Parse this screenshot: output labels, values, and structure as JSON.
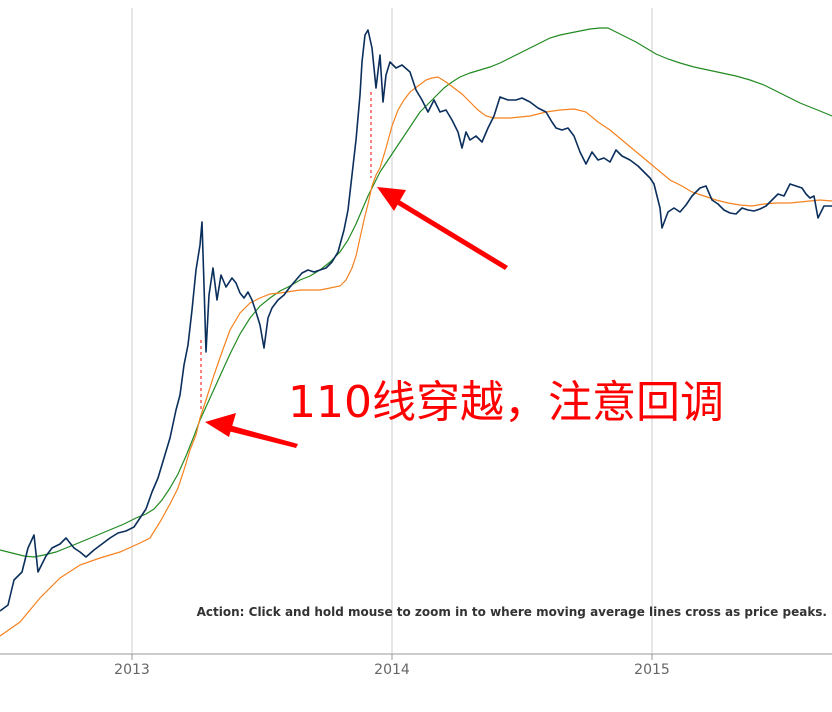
{
  "chart_data": {
    "type": "line",
    "x_axis": {
      "ticks": [
        "2013",
        "2014",
        "2015"
      ],
      "grid": true
    },
    "y_axis": {
      "labels": false
    },
    "colors": {
      "price": "#0b2f5c",
      "ma_short": "#f5821f",
      "ma_long": "#228b22",
      "annotation": "#ff0000",
      "grid": "#cccccc"
    },
    "series": [
      {
        "key": "price",
        "points": [
          [
            0,
            611
          ],
          [
            8,
            605
          ],
          [
            14,
            580
          ],
          [
            22,
            572
          ],
          [
            28,
            548
          ],
          [
            34,
            535
          ],
          [
            38,
            572
          ],
          [
            46,
            556
          ],
          [
            52,
            548
          ],
          [
            60,
            544
          ],
          [
            66,
            538
          ],
          [
            74,
            548
          ],
          [
            80,
            552
          ],
          [
            86,
            557
          ],
          [
            94,
            550
          ],
          [
            102,
            544
          ],
          [
            110,
            538
          ],
          [
            118,
            533
          ],
          [
            126,
            531
          ],
          [
            134,
            527
          ],
          [
            140,
            518
          ],
          [
            146,
            509
          ],
          [
            152,
            492
          ],
          [
            158,
            478
          ],
          [
            164,
            458
          ],
          [
            170,
            438
          ],
          [
            176,
            410
          ],
          [
            180,
            395
          ],
          [
            184,
            365
          ],
          [
            188,
            345
          ],
          [
            192,
            310
          ],
          [
            196,
            270
          ],
          [
            200,
            245
          ],
          [
            202,
            222
          ],
          [
            204,
            285
          ],
          [
            206,
            352
          ],
          [
            209,
            295
          ],
          [
            213,
            268
          ],
          [
            217,
            300
          ],
          [
            221,
            275
          ],
          [
            226,
            287
          ],
          [
            232,
            278
          ],
          [
            236,
            283
          ],
          [
            240,
            293
          ],
          [
            244,
            298
          ],
          [
            248,
            292
          ],
          [
            252,
            300
          ],
          [
            256,
            312
          ],
          [
            260,
            325
          ],
          [
            264,
            348
          ],
          [
            268,
            318
          ],
          [
            272,
            308
          ],
          [
            278,
            300
          ],
          [
            284,
            295
          ],
          [
            290,
            287
          ],
          [
            296,
            280
          ],
          [
            302,
            273
          ],
          [
            308,
            270
          ],
          [
            314,
            272
          ],
          [
            320,
            270
          ],
          [
            326,
            268
          ],
          [
            332,
            262
          ],
          [
            338,
            252
          ],
          [
            344,
            230
          ],
          [
            348,
            210
          ],
          [
            352,
            175
          ],
          [
            356,
            140
          ],
          [
            360,
            95
          ],
          [
            362,
            62
          ],
          [
            365,
            35
          ],
          [
            368,
            30
          ],
          [
            372,
            48
          ],
          [
            376,
            88
          ],
          [
            380,
            55
          ],
          [
            383,
            102
          ],
          [
            386,
            75
          ],
          [
            390,
            62
          ],
          [
            396,
            68
          ],
          [
            402,
            65
          ],
          [
            410,
            72
          ],
          [
            416,
            90
          ],
          [
            422,
            100
          ],
          [
            428,
            112
          ],
          [
            434,
            100
          ],
          [
            440,
            112
          ],
          [
            446,
            110
          ],
          [
            452,
            120
          ],
          [
            458,
            132
          ],
          [
            462,
            148
          ],
          [
            466,
            132
          ],
          [
            470,
            140
          ],
          [
            476,
            136
          ],
          [
            482,
            142
          ],
          [
            488,
            128
          ],
          [
            494,
            116
          ],
          [
            500,
            97
          ],
          [
            508,
            100
          ],
          [
            516,
            100
          ],
          [
            522,
            98
          ],
          [
            530,
            102
          ],
          [
            538,
            108
          ],
          [
            546,
            112
          ],
          [
            552,
            122
          ],
          [
            556,
            128
          ],
          [
            562,
            130
          ],
          [
            568,
            128
          ],
          [
            574,
            136
          ],
          [
            580,
            152
          ],
          [
            586,
            164
          ],
          [
            592,
            152
          ],
          [
            598,
            160
          ],
          [
            604,
            158
          ],
          [
            610,
            162
          ],
          [
            616,
            150
          ],
          [
            622,
            156
          ],
          [
            630,
            160
          ],
          [
            638,
            166
          ],
          [
            644,
            172
          ],
          [
            650,
            178
          ],
          [
            654,
            184
          ],
          [
            660,
            208
          ],
          [
            662,
            228
          ],
          [
            668,
            212
          ],
          [
            674,
            208
          ],
          [
            680,
            212
          ],
          [
            686,
            205
          ],
          [
            692,
            196
          ],
          [
            700,
            188
          ],
          [
            706,
            186
          ],
          [
            712,
            200
          ],
          [
            718,
            204
          ],
          [
            724,
            210
          ],
          [
            730,
            213
          ],
          [
            736,
            214
          ],
          [
            742,
            208
          ],
          [
            748,
            210
          ],
          [
            754,
            211
          ],
          [
            760,
            209
          ],
          [
            766,
            206
          ],
          [
            772,
            200
          ],
          [
            778,
            194
          ],
          [
            784,
            196
          ],
          [
            790,
            184
          ],
          [
            796,
            186
          ],
          [
            802,
            188
          ],
          [
            806,
            194
          ],
          [
            810,
            198
          ],
          [
            814,
            196
          ],
          [
            818,
            218
          ],
          [
            824,
            206
          ],
          [
            832,
            206
          ]
        ]
      },
      {
        "key": "ma_short",
        "points": [
          [
            0,
            636
          ],
          [
            20,
            622
          ],
          [
            40,
            598
          ],
          [
            60,
            578
          ],
          [
            80,
            565
          ],
          [
            100,
            558
          ],
          [
            120,
            552
          ],
          [
            140,
            543
          ],
          [
            150,
            538
          ],
          [
            160,
            522
          ],
          [
            170,
            504
          ],
          [
            178,
            488
          ],
          [
            184,
            470
          ],
          [
            190,
            450
          ],
          [
            196,
            435
          ],
          [
            200,
            418
          ],
          [
            206,
            400
          ],
          [
            214,
            375
          ],
          [
            222,
            352
          ],
          [
            230,
            330
          ],
          [
            240,
            313
          ],
          [
            250,
            303
          ],
          [
            260,
            298
          ],
          [
            270,
            294
          ],
          [
            280,
            293
          ],
          [
            300,
            290
          ],
          [
            320,
            290
          ],
          [
            330,
            288
          ],
          [
            340,
            286
          ],
          [
            346,
            280
          ],
          [
            352,
            268
          ],
          [
            356,
            256
          ],
          [
            360,
            238
          ],
          [
            364,
            220
          ],
          [
            368,
            204
          ],
          [
            372,
            186
          ],
          [
            376,
            175
          ],
          [
            380,
            168
          ],
          [
            386,
            148
          ],
          [
            392,
            126
          ],
          [
            398,
            110
          ],
          [
            404,
            100
          ],
          [
            410,
            92
          ],
          [
            418,
            86
          ],
          [
            426,
            80
          ],
          [
            432,
            78
          ],
          [
            438,
            77
          ],
          [
            446,
            82
          ],
          [
            454,
            88
          ],
          [
            462,
            94
          ],
          [
            470,
            102
          ],
          [
            478,
            110
          ],
          [
            486,
            116
          ],
          [
            494,
            118
          ],
          [
            510,
            118
          ],
          [
            530,
            116
          ],
          [
            546,
            112
          ],
          [
            560,
            110
          ],
          [
            574,
            109
          ],
          [
            586,
            112
          ],
          [
            598,
            122
          ],
          [
            610,
            130
          ],
          [
            622,
            140
          ],
          [
            634,
            150
          ],
          [
            646,
            160
          ],
          [
            658,
            170
          ],
          [
            670,
            180
          ],
          [
            682,
            186
          ],
          [
            692,
            192
          ],
          [
            704,
            196
          ],
          [
            716,
            200
          ],
          [
            728,
            203
          ],
          [
            740,
            205
          ],
          [
            752,
            206
          ],
          [
            764,
            204
          ],
          [
            776,
            203
          ],
          [
            790,
            203
          ],
          [
            800,
            202
          ],
          [
            810,
            201
          ],
          [
            820,
            200
          ],
          [
            832,
            201
          ]
        ]
      },
      {
        "key": "ma_long",
        "points": [
          [
            0,
            550
          ],
          [
            12,
            553
          ],
          [
            24,
            556
          ],
          [
            34,
            557
          ],
          [
            44,
            555
          ],
          [
            56,
            552
          ],
          [
            66,
            548
          ],
          [
            76,
            544
          ],
          [
            88,
            539
          ],
          [
            100,
            534
          ],
          [
            112,
            529
          ],
          [
            124,
            524
          ],
          [
            136,
            518
          ],
          [
            146,
            514
          ],
          [
            154,
            509
          ],
          [
            162,
            500
          ],
          [
            170,
            488
          ],
          [
            178,
            474
          ],
          [
            186,
            456
          ],
          [
            194,
            436
          ],
          [
            200,
            420
          ],
          [
            210,
            398
          ],
          [
            220,
            376
          ],
          [
            230,
            354
          ],
          [
            240,
            334
          ],
          [
            250,
            318
          ],
          [
            260,
            306
          ],
          [
            270,
            298
          ],
          [
            280,
            291
          ],
          [
            290,
            286
          ],
          [
            300,
            280
          ],
          [
            310,
            276
          ],
          [
            320,
            270
          ],
          [
            330,
            262
          ],
          [
            340,
            252
          ],
          [
            348,
            240
          ],
          [
            356,
            224
          ],
          [
            362,
            210
          ],
          [
            368,
            196
          ],
          [
            374,
            184
          ],
          [
            380,
            172
          ],
          [
            388,
            160
          ],
          [
            396,
            148
          ],
          [
            404,
            136
          ],
          [
            412,
            124
          ],
          [
            420,
            112
          ],
          [
            428,
            104
          ],
          [
            436,
            96
          ],
          [
            444,
            88
          ],
          [
            452,
            82
          ],
          [
            460,
            77
          ],
          [
            470,
            73
          ],
          [
            480,
            70
          ],
          [
            490,
            67
          ],
          [
            500,
            63
          ],
          [
            510,
            58
          ],
          [
            520,
            53
          ],
          [
            530,
            48
          ],
          [
            540,
            43
          ],
          [
            550,
            38
          ],
          [
            560,
            35
          ],
          [
            570,
            33
          ],
          [
            580,
            31
          ],
          [
            590,
            29
          ],
          [
            600,
            28
          ],
          [
            608,
            28
          ],
          [
            616,
            32
          ],
          [
            626,
            37
          ],
          [
            636,
            42
          ],
          [
            646,
            48
          ],
          [
            656,
            54
          ],
          [
            668,
            59
          ],
          [
            680,
            63
          ],
          [
            694,
            67
          ],
          [
            708,
            70
          ],
          [
            722,
            73
          ],
          [
            736,
            76
          ],
          [
            750,
            80
          ],
          [
            764,
            85
          ],
          [
            778,
            92
          ],
          [
            790,
            98
          ],
          [
            800,
            103
          ],
          [
            810,
            107
          ],
          [
            820,
            111
          ],
          [
            832,
            116
          ]
        ]
      }
    ],
    "annotations": [
      {
        "key": "headline",
        "text": "110线穿越，注意回调"
      },
      {
        "key": "note",
        "text": "Action: Click and hold mouse to zoom in to where moving average lines cross as price peaks."
      }
    ]
  }
}
